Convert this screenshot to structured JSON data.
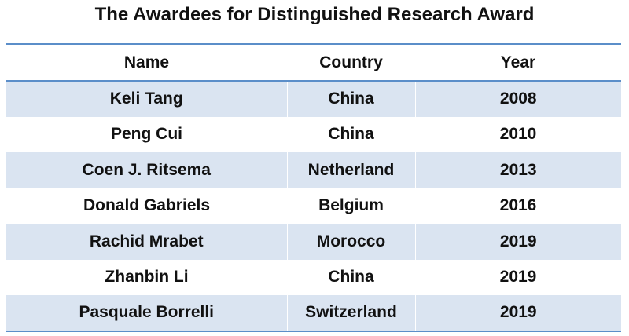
{
  "title": "The Awardees for Distinguished Research Award",
  "table": {
    "header": [
      "Name",
      "Country",
      "Year"
    ],
    "rows": [
      [
        "Keli Tang",
        "China",
        2008
      ],
      [
        "Peng Cui",
        "China",
        2010
      ],
      [
        "Coen J. Ritsema",
        "Netherland",
        2013
      ],
      [
        "Donald Gabriels",
        "Belgium",
        2016
      ],
      [
        "Rachid Mrabet",
        "Morocco",
        2019
      ],
      [
        "Zhanbin Li",
        "China",
        2019
      ],
      [
        "Pasquale Borrelli",
        "Switzerland",
        2019
      ]
    ]
  }
}
